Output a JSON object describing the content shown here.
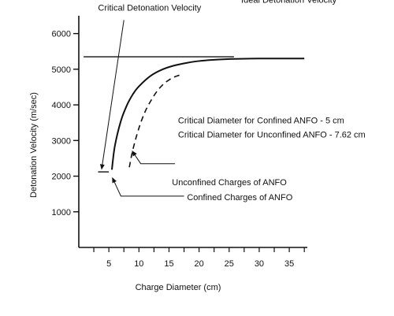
{
  "chart_data": {
    "type": "line",
    "title": "",
    "xlabel": "Charge Diameter (cm)",
    "ylabel": "Detonation Velocity (m/sec)",
    "xlim": [
      0,
      38
    ],
    "ylim": [
      0,
      6500
    ],
    "x_ticks": [
      5,
      10,
      15,
      20,
      25,
      30,
      35
    ],
    "y_ticks": [
      1000,
      2000,
      3000,
      4000,
      5000,
      6000
    ],
    "grid": false,
    "legend": "none",
    "series": [
      {
        "style": "solid",
        "x": [
          5.5,
          6.0,
          7.0,
          8.0,
          9.0,
          10.0,
          12.0,
          14.0,
          16.0,
          18.0,
          20.0,
          23.0,
          26.0,
          30.0,
          34.0,
          37.5
        ],
        "y": [
          2180,
          2850,
          3550,
          3990,
          4300,
          4520,
          4820,
          5000,
          5110,
          5180,
          5230,
          5270,
          5290,
          5300,
          5300,
          5300
        ]
      },
      {
        "style": "dashed",
        "x": [
          8.4,
          9.0,
          10.0,
          11.0,
          12.0,
          13.0,
          14.0,
          15.0,
          16.0,
          17.0
        ],
        "y": [
          2250,
          2750,
          3350,
          3800,
          4120,
          4380,
          4570,
          4700,
          4790,
          4850
        ]
      }
    ],
    "reference_lines": [
      {
        "x": [
          0.8,
          25.8
        ],
        "y": [
          5350,
          5350
        ]
      },
      {
        "x": [
          3.2,
          5.0
        ],
        "y": [
          2120,
          2120
        ]
      }
    ],
    "annotations": [
      {
        "text": "Critical Detonation Velocity",
        "text_x": 3.2,
        "text_y": 6640,
        "arrow_from_x": 7.5,
        "arrow_from_y": 6380,
        "arrow_to_x": 3.8,
        "arrow_to_y": 2200
      },
      {
        "text": "Ideal Detonation Velocity",
        "text_x": 27.0,
        "text_y": 6870
      },
      {
        "text": "Critical Diameter for Confined ANFO - 5 cm",
        "text_x": 16.5,
        "text_y": 3480
      },
      {
        "text": "Critical Diameter for Unconfined ANFO - 7.62 cm",
        "text_x": 16.5,
        "text_y": 3080
      },
      {
        "text": "Unconfined Charges of ANFO",
        "text_x": 15.5,
        "text_y": 1750,
        "arrow_from_x": 16.0,
        "arrow_from_y": 2350,
        "arrow_to_x": 10.3,
        "arrow_to_y": 2350,
        "arrow_head_x": 8.9,
        "arrow_head_y": 2700
      },
      {
        "text": "Confined Charges of ANFO",
        "text_x": 18.0,
        "text_y": 1330,
        "arrow_from_x": 17.5,
        "arrow_from_y": 1440,
        "arrow_to_x": 7.0,
        "arrow_to_y": 1440,
        "arrow_head_x": 5.6,
        "arrow_head_y": 1950
      }
    ]
  }
}
